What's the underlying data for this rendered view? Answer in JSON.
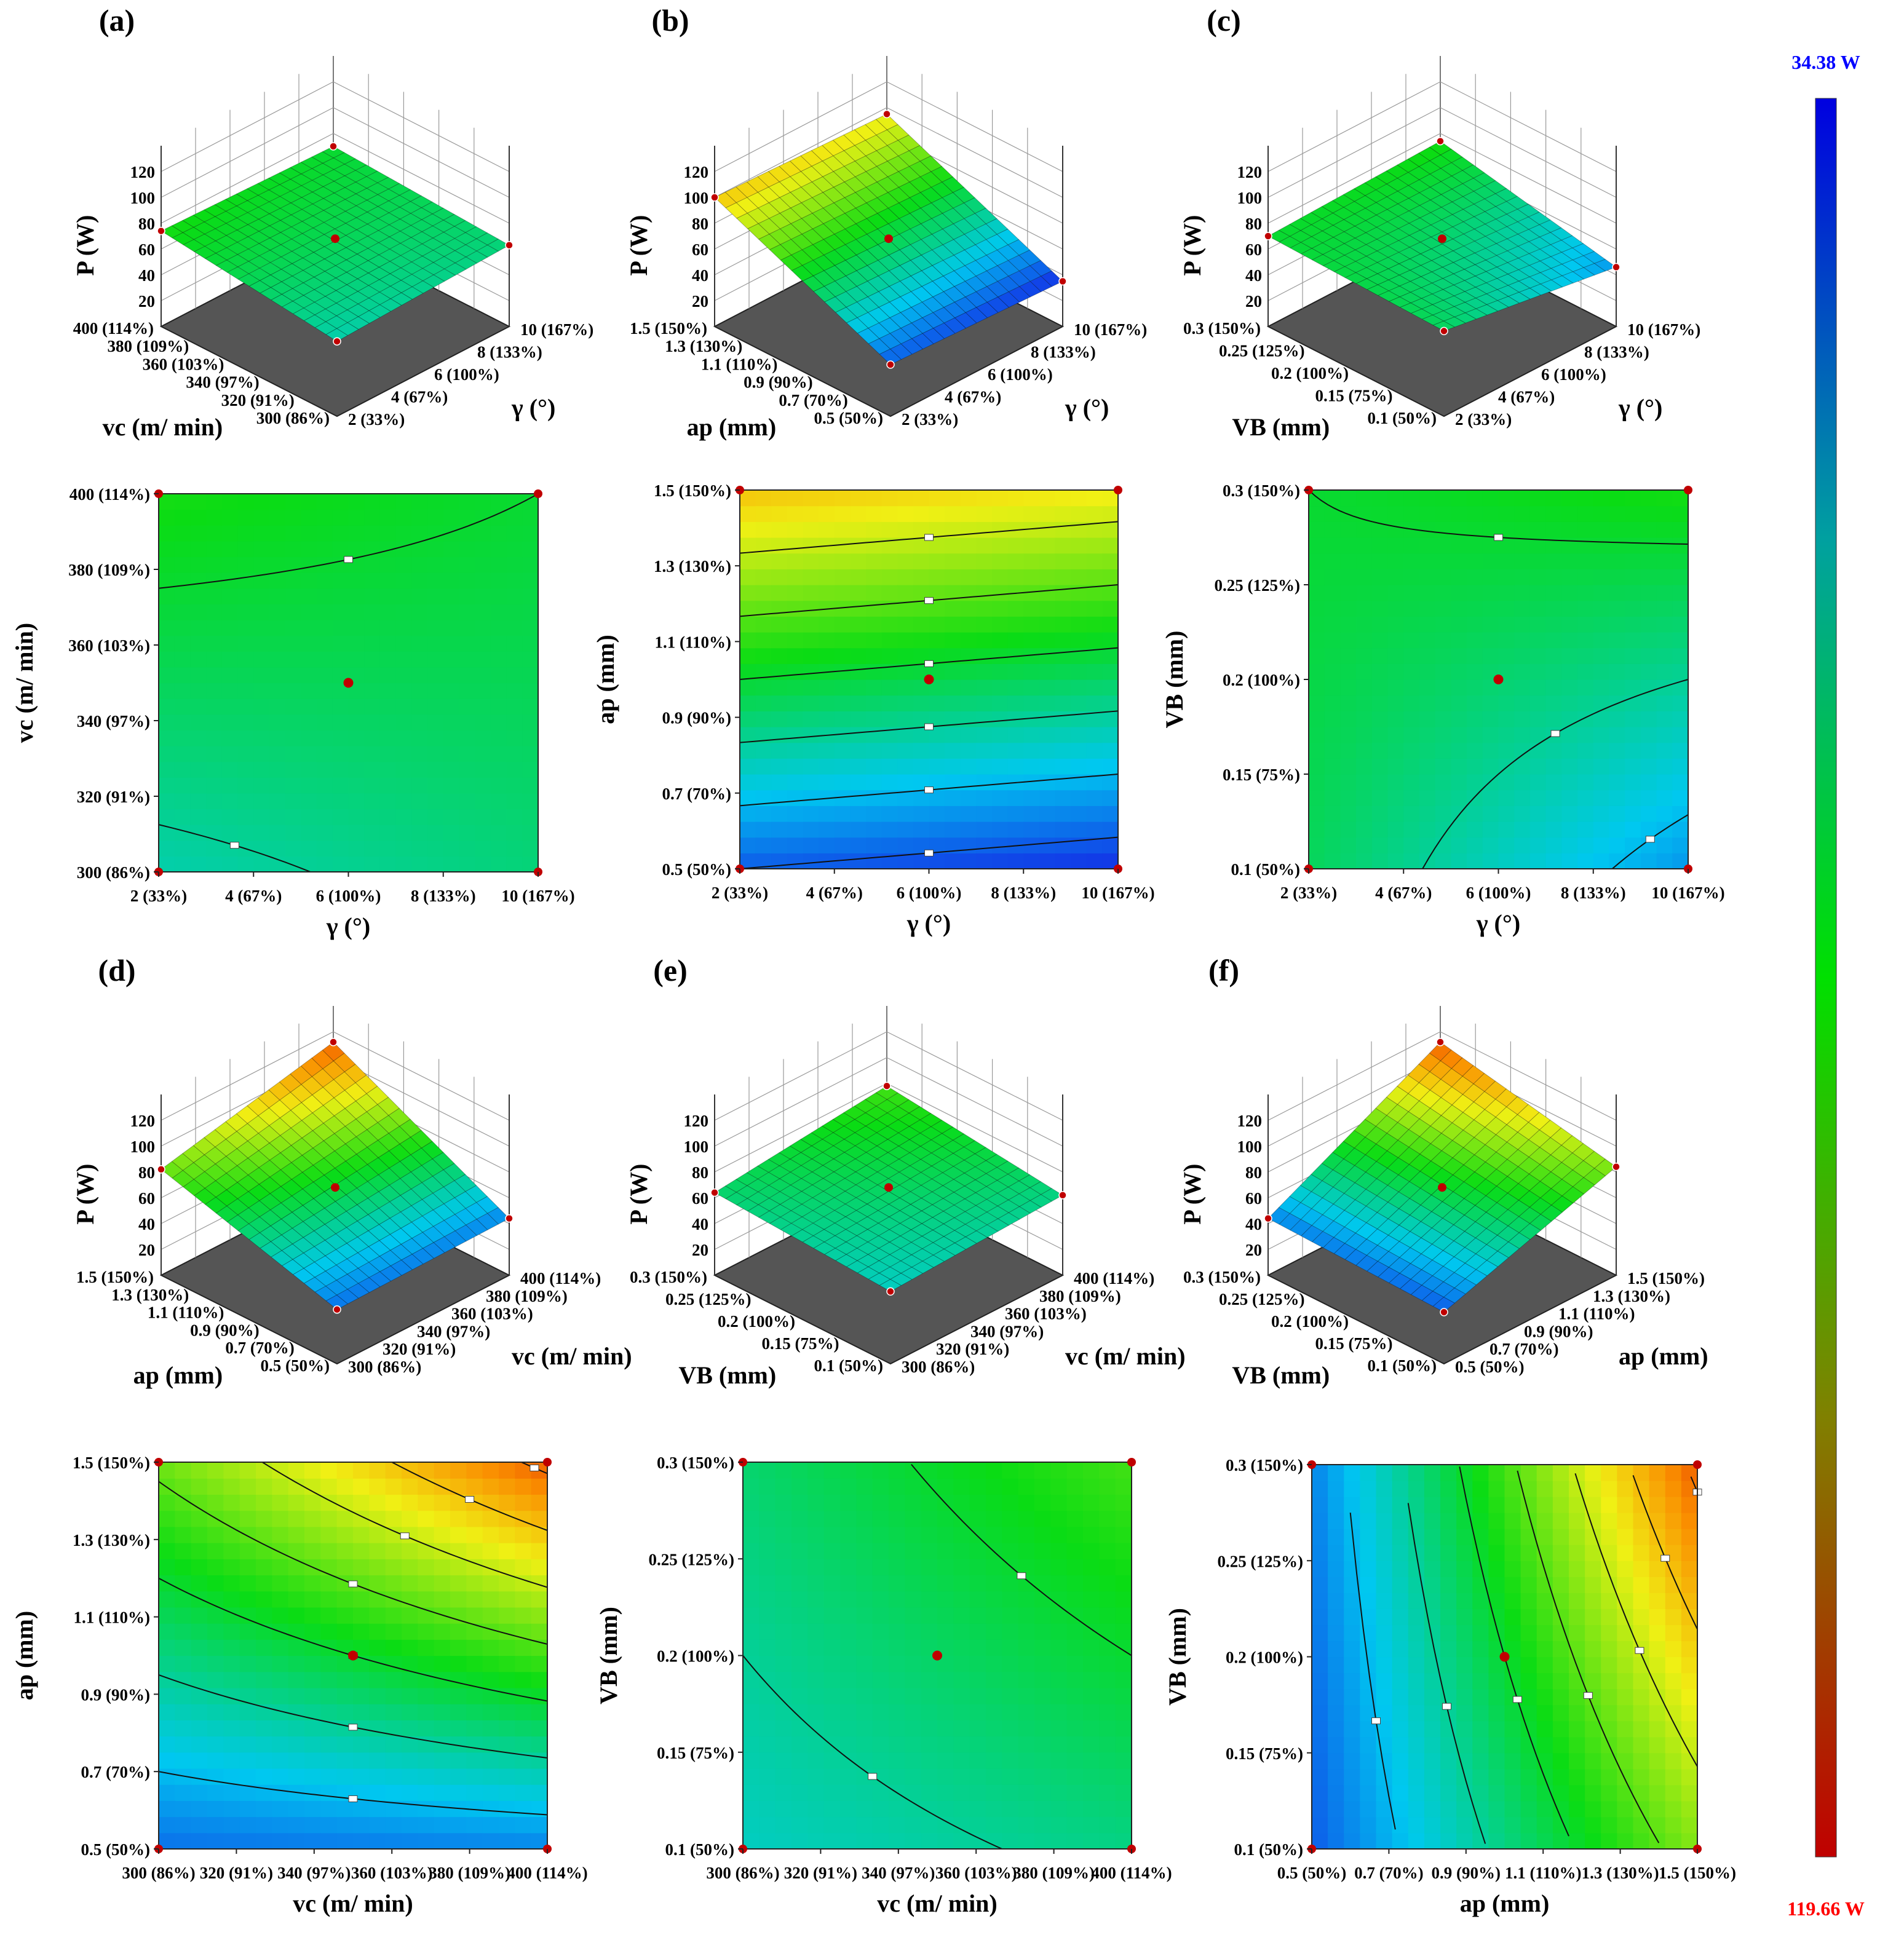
{
  "figure": {
    "panel_labels": [
      "(a)",
      "(b)",
      "(c)",
      "(d)",
      "(e)",
      "(f)"
    ],
    "response_axis_label": "P (W)",
    "colorbar": {
      "max_label": "34.38 W",
      "min_label": "119.66 W",
      "max_color": "#0000ff",
      "min_color": "#ff0000"
    }
  },
  "chart_data": [
    {
      "type": "surface3d",
      "panel": "(a)",
      "zlabel": "P (W)",
      "zticks": [
        "120",
        "100",
        "80",
        "60",
        "40",
        "20"
      ],
      "x_var": "γ (°)",
      "x_ticks": [
        "2 (33%)",
        "4 (67%)",
        "6 (100%)",
        "8 (133%)",
        "10 (167%)"
      ],
      "y_var": "vc (m/ min)",
      "y_ticks": [
        "300 (86%)",
        "320 (91%)",
        "340 (97%)",
        "360 (103%)",
        "380 (109%)",
        "400 (114%)"
      ],
      "surface_corners_W": {
        "x_min_y_min": 58,
        "x_max_y_min": 63,
        "x_min_y_max": 74,
        "x_max_y_max": 70
      },
      "center_point_W": 68
    },
    {
      "type": "surface3d",
      "panel": "(b)",
      "zlabel": "P (W)",
      "zticks": [
        "120",
        "100",
        "80",
        "60",
        "40",
        "20"
      ],
      "x_var": "γ (°)",
      "x_ticks": [
        "2 (33%)",
        "4 (67%)",
        "6 (100%)",
        "8 (133%)",
        "10 (167%)"
      ],
      "y_var": "ap (mm)",
      "y_ticks": [
        "0.5 (50%)",
        "0.7 (70%)",
        "0.9 (90%)",
        "1.1 (110%)",
        "1.3 (130%)",
        "1.5 (150%)"
      ],
      "surface_corners_W": {
        "x_min_y_min": 40,
        "x_max_y_min": 35,
        "x_min_y_max": 100,
        "x_max_y_max": 95
      },
      "center_point_W": 68
    },
    {
      "type": "surface3d",
      "panel": "(c)",
      "zlabel": "P (W)",
      "zticks": [
        "120",
        "100",
        "80",
        "60",
        "40",
        "20"
      ],
      "x_var": "γ (°)",
      "x_ticks": [
        "2 (33%)",
        "4 (67%)",
        "6 (100%)",
        "8 (133%)",
        "10 (167%)"
      ],
      "y_var": "VB (mm)",
      "y_ticks": [
        "0.1 (50%)",
        "0.15 (75%)",
        "0.2 (100%)",
        "0.25 (125%)",
        "0.3 (150%)"
      ],
      "surface_corners_W": {
        "x_min_y_min": 66,
        "x_max_y_min": 46,
        "x_min_y_max": 70,
        "x_max_y_max": 74
      },
      "center_point_W": 68
    },
    {
      "type": "contour",
      "panel": "(a)",
      "xlabel": "γ (°)",
      "x_ticks": [
        "2 (33%)",
        "4 (67%)",
        "6 (100%)",
        "8 (133%)",
        "10 (167%)"
      ],
      "ylabel": "vc (m/ min)",
      "y_ticks": [
        "300 (86%)",
        "320 (91%)",
        "340 (97%)",
        "360 (103%)",
        "380 (109%)",
        "400 (114%)"
      ],
      "corner_values_W": {
        "x_min_y_min": 58,
        "x_max_y_min": 63,
        "x_min_y_max": 74,
        "x_max_y_max": 70
      },
      "center_point": {
        "x": 6,
        "y": 350
      }
    },
    {
      "type": "contour",
      "panel": "(b)",
      "xlabel": "γ (°)",
      "x_ticks": [
        "2 (33%)",
        "4 (67%)",
        "6 (100%)",
        "8 (133%)",
        "10 (167%)"
      ],
      "ylabel": "ap (mm)",
      "y_ticks": [
        "0.5 (50%)",
        "0.7 (70%)",
        "0.9 (90%)",
        "1.1 (110%)",
        "1.3 (130%)",
        "1.5 (150%)"
      ],
      "corner_values_W": {
        "x_min_y_min": 40,
        "x_max_y_min": 35,
        "x_min_y_max": 100,
        "x_max_y_max": 95
      },
      "center_point": {
        "x": 6,
        "y": 1.0
      }
    },
    {
      "type": "contour",
      "panel": "(c)",
      "xlabel": "γ (°)",
      "x_ticks": [
        "2 (33%)",
        "4 (67%)",
        "6 (100%)",
        "8 (133%)",
        "10 (167%)"
      ],
      "ylabel": "VB (mm)",
      "y_ticks": [
        "0.1 (50%)",
        "0.15 (75%)",
        "0.2 (100%)",
        "0.25 (125%)",
        "0.3 (150%)"
      ],
      "corner_values_W": {
        "x_min_y_min": 66,
        "x_max_y_min": 46,
        "x_min_y_max": 70,
        "x_max_y_max": 74
      },
      "center_point": {
        "x": 6,
        "y": 0.2
      }
    },
    {
      "type": "surface3d",
      "panel": "(d)",
      "zlabel": "P (W)",
      "zticks": [
        "120",
        "100",
        "80",
        "60",
        "40",
        "20"
      ],
      "x_var": "vc (m/ min)",
      "x_ticks": [
        "300 (86%)",
        "320 (91%)",
        "340 (97%)",
        "360 (103%)",
        "380 (109%)",
        "400 (114%)"
      ],
      "y_var": "ap (mm)",
      "y_ticks": [
        "0.5 (50%)",
        "0.7 (70%)",
        "0.9 (90%)",
        "1.1 (110%)",
        "1.3 (130%)",
        "1.5 (150%)"
      ],
      "surface_corners_W": {
        "x_min_y_min": 42,
        "x_max_y_min": 44,
        "x_min_y_max": 82,
        "x_max_y_max": 112
      },
      "center_point_W": 68
    },
    {
      "type": "surface3d",
      "panel": "(e)",
      "zlabel": "P (W)",
      "zticks": [
        "120",
        "100",
        "80",
        "60",
        "40",
        "20"
      ],
      "x_var": "vc (m/ min)",
      "x_ticks": [
        "300 (86%)",
        "320 (91%)",
        "340 (97%)",
        "360 (103%)",
        "380 (109%)",
        "400 (114%)"
      ],
      "y_var": "VB (mm)",
      "y_ticks": [
        "0.1 (50%)",
        "0.15 (75%)",
        "0.2 (100%)",
        "0.25 (125%)",
        "0.3 (150%)"
      ],
      "surface_corners_W": {
        "x_min_y_min": 56,
        "x_max_y_min": 62,
        "x_min_y_max": 64,
        "x_max_y_max": 78
      },
      "center_point_W": 68
    },
    {
      "type": "surface3d",
      "panel": "(f)",
      "zlabel": "P (W)",
      "zticks": [
        "120",
        "100",
        "80",
        "60",
        "40",
        "20"
      ],
      "x_var": "ap (mm)",
      "x_ticks": [
        "0.5 (50%)",
        "0.7 (70%)",
        "0.9 (90%)",
        "1.1 (110%)",
        "1.3 (130%)",
        "1.5 (150%)"
      ],
      "y_var": "VB (mm)",
      "y_ticks": [
        "0.1 (50%)",
        "0.15 (75%)",
        "0.2 (100%)",
        "0.25 (125%)",
        "0.3 (150%)"
      ],
      "surface_corners_W": {
        "x_min_y_min": 40,
        "x_max_y_min": 84,
        "x_min_y_max": 44,
        "x_max_y_max": 112
      },
      "center_point_W": 68
    },
    {
      "type": "contour",
      "panel": "(d)",
      "xlabel": "vc (m/ min)",
      "x_ticks": [
        "300 (86%)",
        "320 (91%)",
        "340 (97%)",
        "360 (103%)",
        "380 (109%)",
        "400 (114%)"
      ],
      "ylabel": "ap (mm)",
      "y_ticks": [
        "0.5 (50%)",
        "0.7 (70%)",
        "0.9 (90%)",
        "1.1 (110%)",
        "1.3 (130%)",
        "1.5 (150%)"
      ],
      "corner_values_W": {
        "x_min_y_min": 42,
        "x_max_y_min": 44,
        "x_min_y_max": 82,
        "x_max_y_max": 112
      },
      "center_point": {
        "x": 350,
        "y": 1.0
      }
    },
    {
      "type": "contour",
      "panel": "(e)",
      "xlabel": "vc (m/ min)",
      "x_ticks": [
        "300 (86%)",
        "320 (91%)",
        "340 (97%)",
        "360 (103%)",
        "380 (109%)",
        "400 (114%)"
      ],
      "ylabel": "VB (mm)",
      "y_ticks": [
        "0.1 (50%)",
        "0.15 (75%)",
        "0.2 (100%)",
        "0.25 (125%)",
        "0.3 (150%)"
      ],
      "corner_values_W": {
        "x_min_y_min": 56,
        "x_max_y_min": 62,
        "x_min_y_max": 64,
        "x_max_y_max": 78
      },
      "center_point": {
        "x": 350,
        "y": 0.2
      }
    },
    {
      "type": "contour",
      "panel": "(f)",
      "xlabel": "ap (mm)",
      "x_ticks": [
        "0.5 (50%)",
        "0.7 (70%)",
        "0.9 (90%)",
        "1.1 (110%)",
        "1.3 (130%)",
        "1.5 (150%)"
      ],
      "ylabel": "VB (mm)",
      "y_ticks": [
        "0.1 (50%)",
        "0.15 (75%)",
        "0.2 (100%)",
        "0.25 (125%)",
        "0.3 (150%)"
      ],
      "corner_values_W": {
        "x_min_y_min": 40,
        "x_max_y_min": 84,
        "x_min_y_max": 44,
        "x_max_y_max": 112
      },
      "center_point": {
        "x": 1.0,
        "y": 0.2
      }
    }
  ]
}
